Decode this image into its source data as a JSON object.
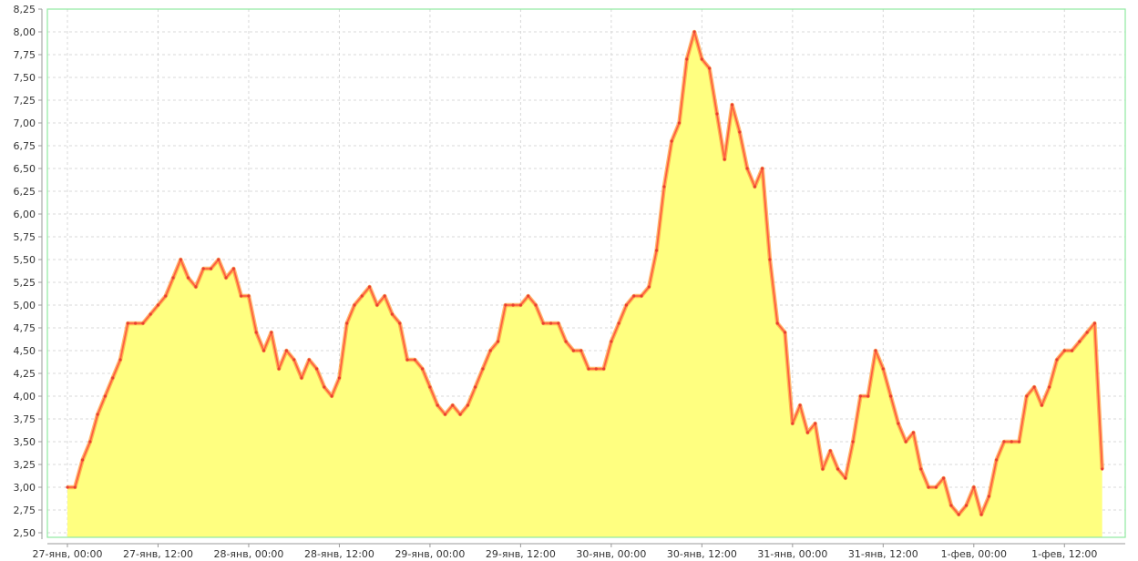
{
  "chart_data": {
    "type": "area",
    "title": "",
    "xlabel": "",
    "ylabel": "",
    "ylim": [
      2.5,
      8.25
    ],
    "y_ticks": [
      "2,50",
      "2,75",
      "3,00",
      "3,25",
      "3,50",
      "3,75",
      "4,00",
      "4,25",
      "4,50",
      "4,75",
      "5,00",
      "5,25",
      "5,50",
      "5,75",
      "6,00",
      "6,25",
      "6,50",
      "6,75",
      "7,00",
      "7,25",
      "7,50",
      "7,75",
      "8,00",
      "8,25"
    ],
    "x_ticks": [
      "27-янв, 00:00",
      "27-янв, 12:00",
      "28-янв, 00:00",
      "28-янв, 12:00",
      "29-янв, 00:00",
      "29-янв, 12:00",
      "30-янв, 00:00",
      "30-янв, 12:00",
      "31-янв, 00:00",
      "31-янв, 12:00",
      "1-фев, 00:00",
      "1-фев, 12:00"
    ],
    "x_interval": "hourly",
    "x_start": "27-янв, 00:00",
    "grid": true,
    "colors": {
      "fill": "#ffff80",
      "line": "#ff6040",
      "border": "#90e8a0",
      "grid": "#d8d8d8"
    },
    "values": [
      3.0,
      3.0,
      3.3,
      3.5,
      3.8,
      4.0,
      4.2,
      4.4,
      4.8,
      4.8,
      4.8,
      4.9,
      5.0,
      5.1,
      5.3,
      5.5,
      5.3,
      5.2,
      5.4,
      5.4,
      5.5,
      5.3,
      5.4,
      5.1,
      5.1,
      4.7,
      4.5,
      4.7,
      4.3,
      4.5,
      4.4,
      4.2,
      4.4,
      4.3,
      4.1,
      4.0,
      4.2,
      4.8,
      5.0,
      5.1,
      5.2,
      5.0,
      5.1,
      4.9,
      4.8,
      4.4,
      4.4,
      4.3,
      4.1,
      3.9,
      3.8,
      3.9,
      3.8,
      3.9,
      4.1,
      4.3,
      4.5,
      4.6,
      5.0,
      5.0,
      5.0,
      5.1,
      5.0,
      4.8,
      4.8,
      4.8,
      4.6,
      4.5,
      4.5,
      4.3,
      4.3,
      4.3,
      4.6,
      4.8,
      5.0,
      5.1,
      5.1,
      5.2,
      5.6,
      6.3,
      6.8,
      7.0,
      7.7,
      8.0,
      7.7,
      7.6,
      7.1,
      6.6,
      7.2,
      6.9,
      6.5,
      6.3,
      6.5,
      5.5,
      4.8,
      4.7,
      3.7,
      3.9,
      3.6,
      3.7,
      3.2,
      3.4,
      3.2,
      3.1,
      3.5,
      4.0,
      4.0,
      4.5,
      4.3,
      4.0,
      3.7,
      3.5,
      3.6,
      3.2,
      3.0,
      3.0,
      3.1,
      2.8,
      2.7,
      2.8,
      3.0,
      2.7,
      2.9,
      3.3,
      3.5,
      3.5,
      3.5,
      4.0,
      4.1,
      3.9,
      4.1,
      4.4,
      4.5,
      4.5,
      4.6,
      4.7,
      4.8,
      3.2
    ]
  }
}
